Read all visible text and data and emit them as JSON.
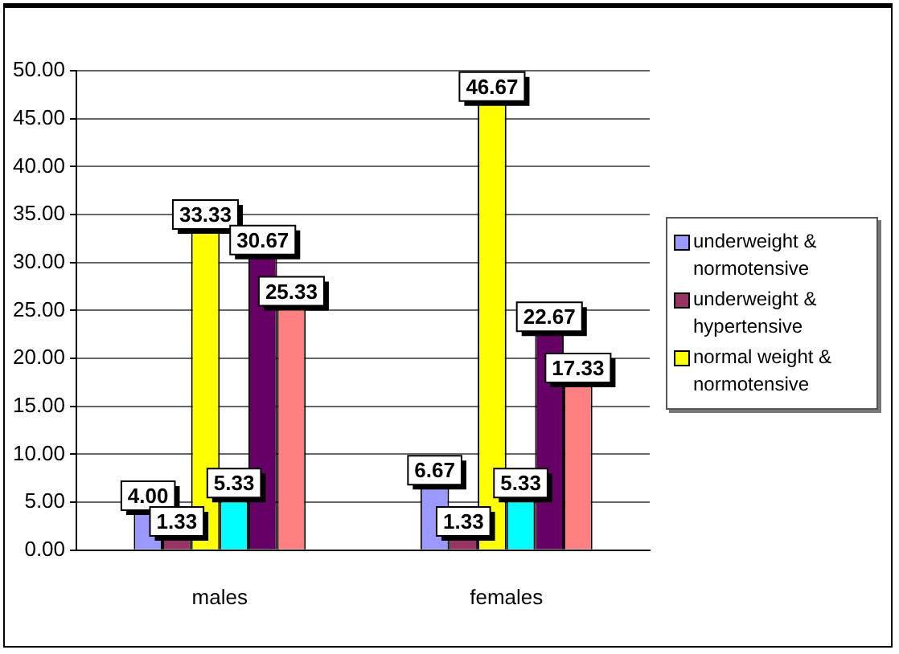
{
  "chart_data": {
    "type": "bar",
    "categories": [
      "males",
      "females"
    ],
    "series": [
      {
        "name": "underweight & normotensive",
        "color": "#9999ff",
        "values": [
          4.0,
          6.67
        ],
        "value_labels": [
          "4.00",
          "6.67"
        ]
      },
      {
        "name": "underweight & hypertensive",
        "color": "#993366",
        "values": [
          1.33,
          1.33
        ],
        "value_labels": [
          "1.33",
          "1.33"
        ]
      },
      {
        "name": "normal weight & normotensive",
        "color": "#ffff00",
        "values": [
          33.33,
          46.67
        ],
        "value_labels": [
          "33.33",
          "46.67"
        ]
      },
      {
        "color": "#00ffff",
        "values": [
          5.33,
          5.33
        ],
        "value_labels": [
          "5.33",
          "5.33"
        ]
      },
      {
        "color": "#660066",
        "values": [
          30.67,
          22.67
        ],
        "value_labels": [
          "30.67",
          "22.67"
        ]
      },
      {
        "color": "#ff8080",
        "values": [
          25.33,
          17.33
        ],
        "value_labels": [
          "25.33",
          "17.33"
        ]
      }
    ],
    "ylim": [
      0,
      50
    ],
    "yticks": [
      {
        "value": 0,
        "label": "0.00"
      },
      {
        "value": 5,
        "label": "5.00"
      },
      {
        "value": 10,
        "label": "10.00"
      },
      {
        "value": 15,
        "label": "15.00"
      },
      {
        "value": 20,
        "label": "20.00"
      },
      {
        "value": 25,
        "label": "25.00"
      },
      {
        "value": 30,
        "label": "30.00"
      },
      {
        "value": 35,
        "label": "35.00"
      },
      {
        "value": 40,
        "label": "40.00"
      },
      {
        "value": 45,
        "label": "45.00"
      },
      {
        "value": 50,
        "label": "50.00"
      }
    ],
    "grid": "y",
    "legend": "right"
  }
}
